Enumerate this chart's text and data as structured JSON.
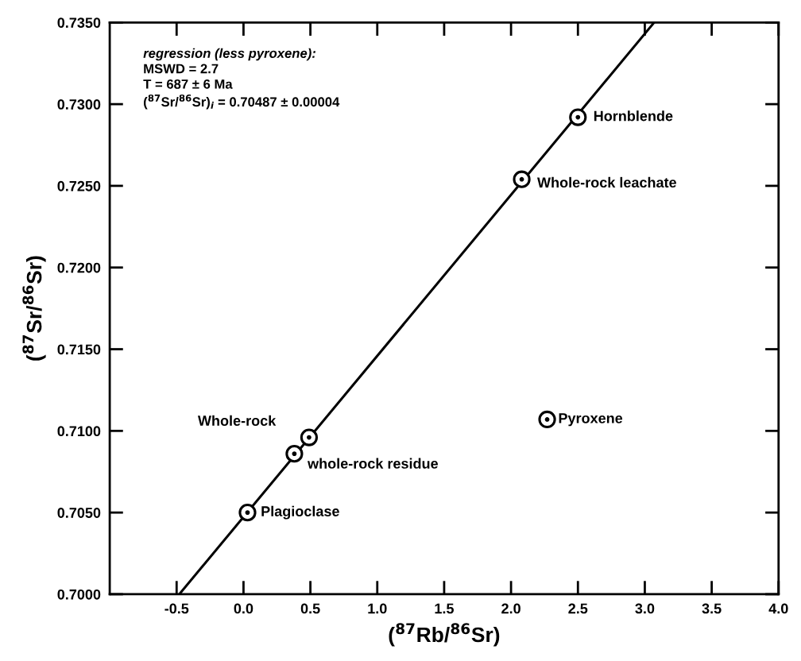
{
  "chart_data": {
    "type": "scatter",
    "xlabel": "($^{87}$Rb/$^{86}$Sr)",
    "ylabel": "($^{87}$Sr/$^{86}$Sr)",
    "xlim": [
      -1.0,
      4.0
    ],
    "ylim": [
      0.7,
      0.735
    ],
    "xticks": [
      {
        "value": -0.5,
        "label": "-0.5"
      },
      {
        "value": 0.0,
        "label": "0.0"
      },
      {
        "value": 0.5,
        "label": "0.5"
      },
      {
        "value": 1.0,
        "label": "1.0"
      },
      {
        "value": 1.5,
        "label": "1.5"
      },
      {
        "value": 2.0,
        "label": "2.0"
      },
      {
        "value": 2.5,
        "label": "2.5"
      },
      {
        "value": 3.0,
        "label": "3.0"
      },
      {
        "value": 3.5,
        "label": "3.5"
      },
      {
        "value": 4.0,
        "label": "4.0"
      }
    ],
    "yticks": [
      {
        "value": 0.7,
        "label": "0.7000"
      },
      {
        "value": 0.705,
        "label": "0.7050"
      },
      {
        "value": 0.71,
        "label": "0.7100"
      },
      {
        "value": 0.715,
        "label": "0.7150"
      },
      {
        "value": 0.72,
        "label": "0.7200"
      },
      {
        "value": 0.725,
        "label": "0.7250"
      },
      {
        "value": 0.73,
        "label": "0.7300"
      },
      {
        "value": 0.735,
        "label": "0.7350"
      }
    ],
    "grid": false,
    "legend": false,
    "series": [
      {
        "color": "#000000",
        "marker": "circle",
        "x": [
          0.03,
          0.38,
          0.49,
          2.27,
          2.08,
          2.5
        ],
        "values": [
          0.705,
          0.7086,
          0.7096,
          0.7107,
          0.7254,
          0.7292
        ]
      },
      {
        "type": "line",
        "color": "#000000",
        "marker": "none",
        "line_style": "solid",
        "x": [
          -0.48,
          3.07
        ],
        "values": [
          0.7,
          0.735
        ]
      }
    ],
    "annotations": [
      "regression (less pyroxene):",
      "MSWD = 2.7",
      "T = 687 ± 6 Ma",
      "($^{87}$Sr/$^{86}$Sr)$_{i}$ = 0.70487 ± 0.00004",
      {
        "text": "Plagioclase",
        "x": 0.03,
        "y": 0.705
      },
      {
        "text": "whole-rock residue",
        "x": 0.38,
        "y": 0.7086
      },
      {
        "text": "Whole-rock",
        "x": 0.49,
        "y": 0.7096
      },
      {
        "text": "Pyroxene",
        "x": 2.27,
        "y": 0.7107
      },
      {
        "text": "Whole-rock leachate",
        "x": 2.08,
        "y": 0.7254
      },
      {
        "text": "Hornblende",
        "x": 2.5,
        "y": 0.7292
      }
    ]
  }
}
